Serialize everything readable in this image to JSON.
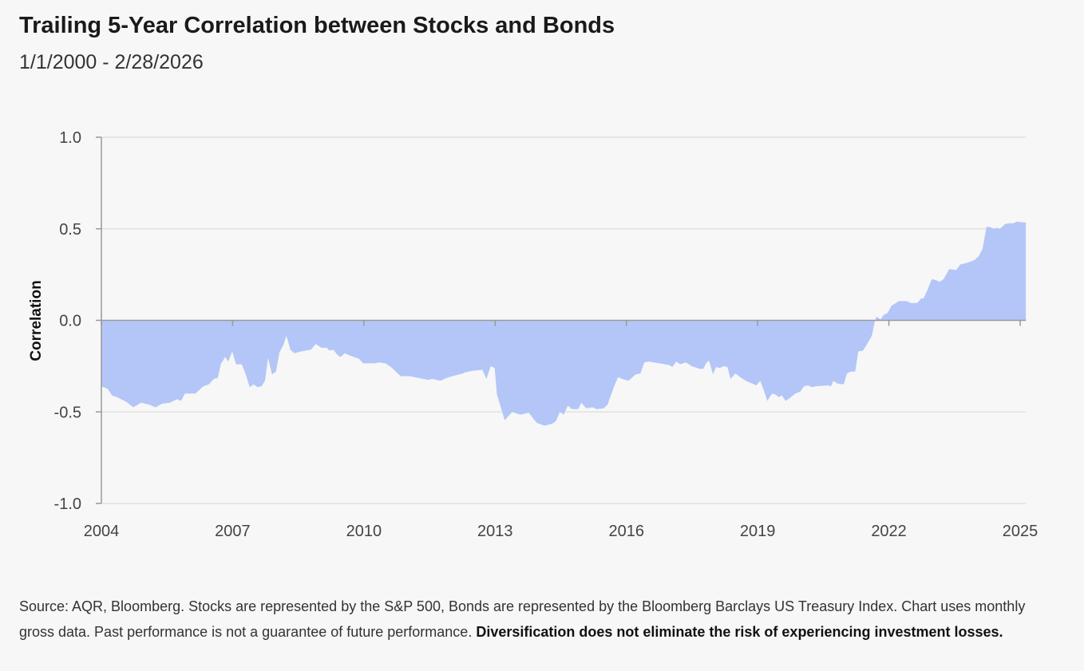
{
  "chart_data": {
    "type": "area",
    "title": "Trailing 5-Year Correlation between Stocks and Bonds",
    "subtitle": "1/1/2000 - 2/28/2026",
    "xlabel": "",
    "ylabel": "Correlation",
    "xlim": [
      2004,
      2025.13
    ],
    "ylim": [
      -1.0,
      1.0
    ],
    "x_ticks": [
      2004,
      2007,
      2010,
      2013,
      2016,
      2019,
      2022,
      2025
    ],
    "x_tick_labels": [
      "2004",
      "2007",
      "2010",
      "2013",
      "2016",
      "2019",
      "2022",
      "2025"
    ],
    "y_ticks": [
      1.0,
      0.5,
      0.0,
      -0.5,
      -1.0
    ],
    "y_tick_labels": [
      "1.0",
      "0.5",
      "0.0",
      "-0.5",
      "-1.0"
    ],
    "grid": true,
    "fill_color": "#b3c6f7",
    "series": [
      {
        "name": "Correlation",
        "points": [
          [
            2004.0,
            -0.36
          ],
          [
            2004.15,
            -0.375
          ],
          [
            2004.24,
            -0.41
          ],
          [
            2004.36,
            -0.42
          ],
          [
            2004.57,
            -0.445
          ],
          [
            2004.73,
            -0.475
          ],
          [
            2004.91,
            -0.45
          ],
          [
            2005.09,
            -0.46
          ],
          [
            2005.24,
            -0.475
          ],
          [
            2005.39,
            -0.455
          ],
          [
            2005.57,
            -0.45
          ],
          [
            2005.73,
            -0.43
          ],
          [
            2005.82,
            -0.44
          ],
          [
            2005.91,
            -0.4
          ],
          [
            2006.15,
            -0.4
          ],
          [
            2006.33,
            -0.36
          ],
          [
            2006.46,
            -0.35
          ],
          [
            2006.57,
            -0.32
          ],
          [
            2006.66,
            -0.315
          ],
          [
            2006.73,
            -0.24
          ],
          [
            2006.83,
            -0.2
          ],
          [
            2006.9,
            -0.225
          ],
          [
            2006.99,
            -0.17
          ],
          [
            2007.08,
            -0.24
          ],
          [
            2007.21,
            -0.24
          ],
          [
            2007.3,
            -0.295
          ],
          [
            2007.39,
            -0.365
          ],
          [
            2007.48,
            -0.35
          ],
          [
            2007.57,
            -0.365
          ],
          [
            2007.66,
            -0.36
          ],
          [
            2007.74,
            -0.33
          ],
          [
            2007.81,
            -0.205
          ],
          [
            2007.9,
            -0.295
          ],
          [
            2007.99,
            -0.28
          ],
          [
            2008.07,
            -0.175
          ],
          [
            2008.16,
            -0.135
          ],
          [
            2008.23,
            -0.085
          ],
          [
            2008.32,
            -0.16
          ],
          [
            2008.41,
            -0.18
          ],
          [
            2008.56,
            -0.17
          ],
          [
            2008.79,
            -0.16
          ],
          [
            2008.9,
            -0.13
          ],
          [
            2009.03,
            -0.15
          ],
          [
            2009.16,
            -0.15
          ],
          [
            2009.21,
            -0.165
          ],
          [
            2009.3,
            -0.16
          ],
          [
            2009.4,
            -0.19
          ],
          [
            2009.47,
            -0.2
          ],
          [
            2009.56,
            -0.18
          ],
          [
            2009.71,
            -0.195
          ],
          [
            2009.89,
            -0.21
          ],
          [
            2009.98,
            -0.235
          ],
          [
            2010.25,
            -0.235
          ],
          [
            2010.34,
            -0.23
          ],
          [
            2010.49,
            -0.235
          ],
          [
            2010.62,
            -0.255
          ],
          [
            2010.84,
            -0.305
          ],
          [
            2011.04,
            -0.305
          ],
          [
            2011.25,
            -0.315
          ],
          [
            2011.47,
            -0.325
          ],
          [
            2011.56,
            -0.32
          ],
          [
            2011.75,
            -0.33
          ],
          [
            2011.89,
            -0.315
          ],
          [
            2012.02,
            -0.305
          ],
          [
            2012.26,
            -0.29
          ],
          [
            2012.31,
            -0.285
          ],
          [
            2012.49,
            -0.275
          ],
          [
            2012.71,
            -0.27
          ],
          [
            2012.8,
            -0.32
          ],
          [
            2012.9,
            -0.25
          ],
          [
            2012.99,
            -0.26
          ],
          [
            2013.04,
            -0.405
          ],
          [
            2013.22,
            -0.545
          ],
          [
            2013.39,
            -0.5
          ],
          [
            2013.57,
            -0.515
          ],
          [
            2013.77,
            -0.505
          ],
          [
            2013.95,
            -0.56
          ],
          [
            2014.13,
            -0.575
          ],
          [
            2014.3,
            -0.565
          ],
          [
            2014.39,
            -0.55
          ],
          [
            2014.48,
            -0.5
          ],
          [
            2014.57,
            -0.515
          ],
          [
            2014.66,
            -0.465
          ],
          [
            2014.75,
            -0.485
          ],
          [
            2014.9,
            -0.485
          ],
          [
            2014.97,
            -0.45
          ],
          [
            2015.08,
            -0.48
          ],
          [
            2015.23,
            -0.475
          ],
          [
            2015.32,
            -0.485
          ],
          [
            2015.48,
            -0.48
          ],
          [
            2015.57,
            -0.46
          ],
          [
            2015.72,
            -0.36
          ],
          [
            2015.81,
            -0.31
          ],
          [
            2015.9,
            -0.32
          ],
          [
            2016.05,
            -0.33
          ],
          [
            2016.21,
            -0.295
          ],
          [
            2016.32,
            -0.29
          ],
          [
            2016.41,
            -0.23
          ],
          [
            2016.5,
            -0.225
          ],
          [
            2016.76,
            -0.235
          ],
          [
            2016.99,
            -0.245
          ],
          [
            2017.05,
            -0.255
          ],
          [
            2017.14,
            -0.225
          ],
          [
            2017.23,
            -0.24
          ],
          [
            2017.36,
            -0.23
          ],
          [
            2017.49,
            -0.25
          ],
          [
            2017.67,
            -0.265
          ],
          [
            2017.76,
            -0.265
          ],
          [
            2017.82,
            -0.235
          ],
          [
            2017.89,
            -0.22
          ],
          [
            2017.98,
            -0.295
          ],
          [
            2018.05,
            -0.255
          ],
          [
            2018.14,
            -0.26
          ],
          [
            2018.22,
            -0.25
          ],
          [
            2018.31,
            -0.255
          ],
          [
            2018.38,
            -0.32
          ],
          [
            2018.49,
            -0.29
          ],
          [
            2018.6,
            -0.31
          ],
          [
            2018.73,
            -0.33
          ],
          [
            2018.97,
            -0.355
          ],
          [
            2019.06,
            -0.33
          ],
          [
            2019.13,
            -0.375
          ],
          [
            2019.22,
            -0.44
          ],
          [
            2019.33,
            -0.4
          ],
          [
            2019.4,
            -0.405
          ],
          [
            2019.49,
            -0.42
          ],
          [
            2019.55,
            -0.41
          ],
          [
            2019.64,
            -0.44
          ],
          [
            2019.73,
            -0.425
          ],
          [
            2019.86,
            -0.4
          ],
          [
            2019.97,
            -0.39
          ],
          [
            2020.06,
            -0.36
          ],
          [
            2020.15,
            -0.355
          ],
          [
            2020.24,
            -0.365
          ],
          [
            2020.33,
            -0.36
          ],
          [
            2020.61,
            -0.355
          ],
          [
            2020.68,
            -0.36
          ],
          [
            2020.73,
            -0.33
          ],
          [
            2020.82,
            -0.345
          ],
          [
            2020.97,
            -0.35
          ],
          [
            2021.04,
            -0.29
          ],
          [
            2021.13,
            -0.28
          ],
          [
            2021.23,
            -0.28
          ],
          [
            2021.3,
            -0.17
          ],
          [
            2021.41,
            -0.165
          ],
          [
            2021.5,
            -0.13
          ],
          [
            2021.61,
            -0.085
          ],
          [
            2021.68,
            -0.005
          ],
          [
            2021.72,
            0.02
          ],
          [
            2021.81,
            0.005
          ],
          [
            2021.88,
            0.03
          ],
          [
            2021.97,
            0.04
          ],
          [
            2022.06,
            0.08
          ],
          [
            2022.23,
            0.105
          ],
          [
            2022.41,
            0.105
          ],
          [
            2022.5,
            0.095
          ],
          [
            2022.65,
            0.095
          ],
          [
            2022.74,
            0.12
          ],
          [
            2022.79,
            0.12
          ],
          [
            2022.88,
            0.165
          ],
          [
            2022.98,
            0.225
          ],
          [
            2023.07,
            0.22
          ],
          [
            2023.16,
            0.21
          ],
          [
            2023.25,
            0.225
          ],
          [
            2023.38,
            0.28
          ],
          [
            2023.54,
            0.275
          ],
          [
            2023.63,
            0.305
          ],
          [
            2023.8,
            0.315
          ],
          [
            2023.96,
            0.33
          ],
          [
            2024.05,
            0.35
          ],
          [
            2024.14,
            0.39
          ],
          [
            2024.23,
            0.51
          ],
          [
            2024.32,
            0.51
          ],
          [
            2024.38,
            0.5
          ],
          [
            2024.47,
            0.505
          ],
          [
            2024.54,
            0.5
          ],
          [
            2024.65,
            0.525
          ],
          [
            2024.74,
            0.53
          ],
          [
            2024.84,
            0.53
          ],
          [
            2024.93,
            0.54
          ],
          [
            2025.05,
            0.535
          ],
          [
            2025.13,
            0.535
          ]
        ]
      }
    ]
  },
  "footnote": {
    "text": "Source: AQR, Bloomberg. Stocks are represented by the S&P 500, Bonds are represented by the Bloomberg Barclays US Treasury Index. Chart uses monthly gross data. Past performance is not a guarantee of future performance. ",
    "bold_text": "Diversification does not eliminate the risk of experiencing investment losses."
  }
}
